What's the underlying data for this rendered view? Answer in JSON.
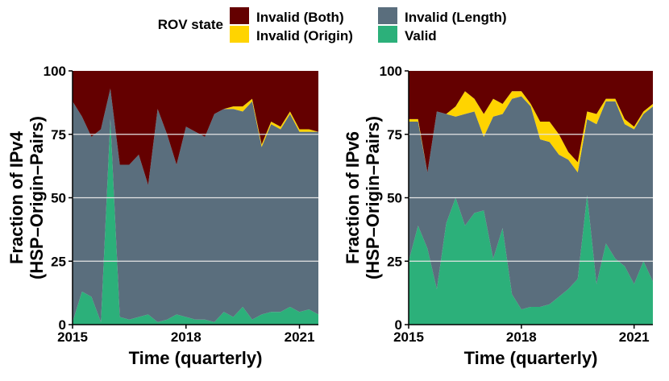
{
  "legend": {
    "title": "ROV state",
    "entries": [
      {
        "label": "Invalid (Both)",
        "color": "#640000"
      },
      {
        "label": "Invalid (Length)",
        "color": "#5a6e7d"
      },
      {
        "label": "Invalid (Origin)",
        "color": "#ffd400"
      },
      {
        "label": "Valid",
        "color": "#2cb07a"
      }
    ]
  },
  "chart_data": [
    {
      "type": "area",
      "stacked": true,
      "title": "",
      "xlabel": "Time (quarterly)",
      "ylabel": "Fraction of IPv4 (HSP–Origin–Pairs)",
      "xlim": [
        2015,
        2021.5
      ],
      "ylim": [
        0,
        100
      ],
      "xticks": [
        2015,
        2018,
        2021
      ],
      "yticks": [
        0,
        25,
        50,
        75,
        100
      ],
      "x": [
        2015,
        2015.25,
        2015.5,
        2015.75,
        2016,
        2016.25,
        2016.5,
        2016.75,
        2017,
        2017.25,
        2017.5,
        2017.75,
        2018,
        2018.25,
        2018.5,
        2018.75,
        2019,
        2019.25,
        2019.5,
        2019.75,
        2020,
        2020.25,
        2020.5,
        2020.75,
        2021,
        2021.25,
        2021.5
      ],
      "series": [
        {
          "name": "Valid",
          "values": [
            1,
            13,
            11,
            1,
            81,
            3,
            2,
            3,
            4,
            1,
            2,
            4,
            3,
            2,
            2,
            1,
            5,
            3,
            7,
            2,
            4,
            5,
            5,
            7,
            5,
            6,
            4
          ]
        },
        {
          "name": "Invalid (Length)",
          "values": [
            87,
            69,
            63,
            76,
            12,
            60,
            61,
            64,
            51,
            84,
            73,
            59,
            75,
            74,
            72,
            82,
            80,
            82,
            77,
            86,
            66,
            74,
            72,
            76,
            71,
            70,
            72
          ]
        },
        {
          "name": "Invalid (Origin)",
          "values": [
            0,
            0,
            0,
            0,
            0,
            0,
            0,
            0,
            0,
            0,
            0,
            0,
            0,
            0,
            0,
            0,
            0,
            1,
            2,
            1,
            1,
            1,
            1,
            1,
            1,
            1,
            0
          ]
        },
        {
          "name": "Invalid (Both)",
          "values": [
            12,
            18,
            26,
            23,
            7,
            37,
            37,
            33,
            45,
            15,
            25,
            37,
            22,
            24,
            26,
            17,
            15,
            14,
            14,
            11,
            29,
            20,
            22,
            16,
            23,
            23,
            24
          ]
        }
      ]
    },
    {
      "type": "area",
      "stacked": true,
      "title": "",
      "xlabel": "Time (quarterly)",
      "ylabel": "Fraction of IPv6 (HSP–Origin–Pairs)",
      "xlim": [
        2015,
        2021.5
      ],
      "ylim": [
        0,
        100
      ],
      "xticks": [
        2015,
        2018,
        2021
      ],
      "yticks": [
        0,
        25,
        50,
        75,
        100
      ],
      "x": [
        2015,
        2015.25,
        2015.5,
        2015.75,
        2016,
        2016.25,
        2016.5,
        2016.75,
        2017,
        2017.25,
        2017.5,
        2017.75,
        2018,
        2018.25,
        2018.5,
        2018.75,
        2019,
        2019.25,
        2019.5,
        2019.75,
        2020,
        2020.25,
        2020.5,
        2020.75,
        2021,
        2021.25,
        2021.5
      ],
      "series": [
        {
          "name": "Valid",
          "values": [
            25,
            39,
            30,
            14,
            40,
            50,
            39,
            44,
            45,
            26,
            38,
            12,
            6,
            7,
            7,
            8,
            11,
            14,
            18,
            51,
            16,
            32,
            26,
            23,
            16,
            25,
            17
          ]
        },
        {
          "name": "Invalid (Length)",
          "values": [
            55,
            41,
            30,
            70,
            43,
            32,
            44,
            40,
            29,
            56,
            45,
            77,
            84,
            79,
            66,
            64,
            56,
            51,
            42,
            30,
            63,
            56,
            62,
            56,
            61,
            58,
            69
          ]
        },
        {
          "name": "Invalid (Origin)",
          "values": [
            1,
            1,
            0,
            0,
            0,
            4,
            9,
            5,
            9,
            7,
            4,
            3,
            2,
            1,
            7,
            8,
            8,
            3,
            4,
            3,
            4,
            1,
            1,
            2,
            1,
            1,
            1
          ]
        },
        {
          "name": "Invalid (Both)",
          "values": [
            19,
            19,
            40,
            16,
            17,
            14,
            8,
            11,
            17,
            11,
            13,
            8,
            8,
            13,
            20,
            20,
            25,
            32,
            36,
            16,
            17,
            11,
            11,
            19,
            22,
            16,
            13
          ]
        }
      ]
    }
  ]
}
